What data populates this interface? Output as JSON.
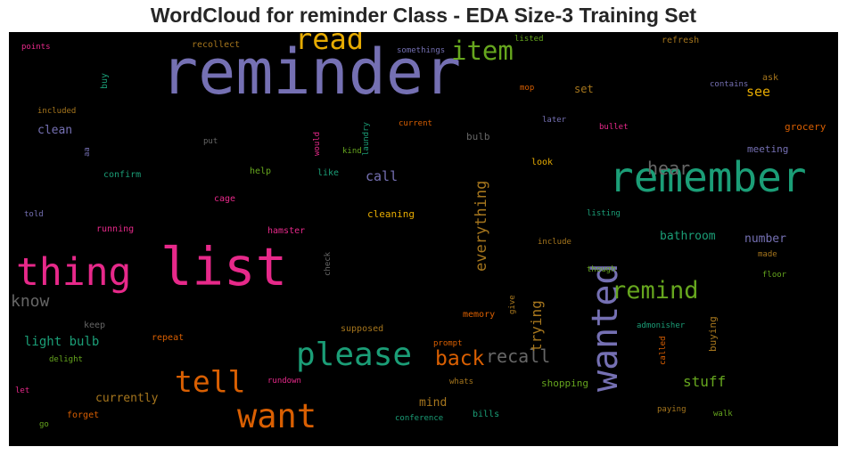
{
  "title": "WordCloud for reminder Class - EDA Size-3 Training Set",
  "chart_data": {
    "type": "wordcloud",
    "title": "WordCloud for reminder Class - EDA Size-3 Training Set",
    "background": "#000000",
    "palette": [
      "#7570b3",
      "#1b9e77",
      "#d95f02",
      "#e7298a",
      "#66a61e",
      "#e6ab02",
      "#a6761d",
      "#666666"
    ],
    "words": [
      {
        "text": "reminder",
        "weight": 1.0,
        "color": "#7570b3"
      },
      {
        "text": "list",
        "weight": 0.84,
        "color": "#e7298a"
      },
      {
        "text": "remember",
        "weight": 0.66,
        "color": "#1b9e77"
      },
      {
        "text": "thing",
        "weight": 0.62,
        "color": "#e7298a"
      },
      {
        "text": "wanted",
        "weight": 0.57,
        "color": "#7570b3"
      },
      {
        "text": "want",
        "weight": 0.53,
        "color": "#d95f02"
      },
      {
        "text": "please",
        "weight": 0.52,
        "color": "#1b9e77"
      },
      {
        "text": "tell",
        "weight": 0.47,
        "color": "#d95f02"
      },
      {
        "text": "read",
        "weight": 0.46,
        "color": "#e6ab02"
      },
      {
        "text": "item",
        "weight": 0.41,
        "color": "#66a61e"
      },
      {
        "text": "remind",
        "weight": 0.38,
        "color": "#66a61e"
      },
      {
        "text": "back",
        "weight": 0.33,
        "color": "#d95f02"
      },
      {
        "text": "recall",
        "weight": 0.29,
        "color": "#666666"
      },
      {
        "text": "hear",
        "weight": 0.29,
        "color": "#666666"
      },
      {
        "text": "everything",
        "weight": 0.24,
        "color": "#a6761d"
      },
      {
        "text": "trying",
        "weight": 0.23,
        "color": "#a6761d"
      },
      {
        "text": "know",
        "weight": 0.26,
        "color": "#666666"
      },
      {
        "text": "stuff",
        "weight": 0.23,
        "color": "#66a61e"
      },
      {
        "text": "call",
        "weight": 0.22,
        "color": "#7570b3"
      },
      {
        "text": "see",
        "weight": 0.22,
        "color": "#e6ab02"
      },
      {
        "text": "light bulb",
        "weight": 0.2,
        "color": "#1b9e77"
      },
      {
        "text": "bathroom",
        "weight": 0.19,
        "color": "#1b9e77"
      },
      {
        "text": "number",
        "weight": 0.19,
        "color": "#7570b3"
      },
      {
        "text": "currently",
        "weight": 0.19,
        "color": "#a6761d"
      },
      {
        "text": "clean",
        "weight": 0.18,
        "color": "#7570b3"
      },
      {
        "text": "mind",
        "weight": 0.18,
        "color": "#a6761d"
      },
      {
        "text": "set",
        "weight": 0.17,
        "color": "#a6761d"
      },
      {
        "text": "grocery",
        "weight": 0.15,
        "color": "#d95f02"
      },
      {
        "text": "meeting",
        "weight": 0.15,
        "color": "#7570b3"
      },
      {
        "text": "bulb",
        "weight": 0.15,
        "color": "#666666"
      },
      {
        "text": "shopping",
        "weight": 0.15,
        "color": "#66a61e"
      },
      {
        "text": "buying",
        "weight": 0.15,
        "color": "#a6761d"
      },
      {
        "text": "cleaning",
        "weight": 0.15,
        "color": "#e6ab02"
      },
      {
        "text": "refresh",
        "weight": 0.14,
        "color": "#a6761d"
      },
      {
        "text": "recollect",
        "weight": 0.14,
        "color": "#a6761d"
      },
      {
        "text": "buy",
        "weight": 0.14,
        "color": "#1b9e77"
      },
      {
        "text": "confirm",
        "weight": 0.14,
        "color": "#1b9e77"
      },
      {
        "text": "help",
        "weight": 0.14,
        "color": "#66a61e"
      },
      {
        "text": "like",
        "weight": 0.14,
        "color": "#1b9e77"
      },
      {
        "text": "cage",
        "weight": 0.14,
        "color": "#e7298a"
      },
      {
        "text": "running",
        "weight": 0.14,
        "color": "#e7298a"
      },
      {
        "text": "hamster",
        "weight": 0.14,
        "color": "#e7298a"
      },
      {
        "text": "look",
        "weight": 0.14,
        "color": "#e6ab02"
      },
      {
        "text": "ask",
        "weight": 0.14,
        "color": "#a6761d"
      },
      {
        "text": "memory",
        "weight": 0.14,
        "color": "#d95f02"
      },
      {
        "text": "repeat",
        "weight": 0.14,
        "color": "#d95f02"
      },
      {
        "text": "keep",
        "weight": 0.14,
        "color": "#666666"
      },
      {
        "text": "supposed",
        "weight": 0.14,
        "color": "#a6761d"
      },
      {
        "text": "forget",
        "weight": 0.14,
        "color": "#d95f02"
      },
      {
        "text": "bills",
        "weight": 0.14,
        "color": "#1b9e77"
      },
      {
        "text": "delight",
        "weight": 0.13,
        "color": "#66a61e"
      },
      {
        "text": "made",
        "weight": 0.13,
        "color": "#a6761d"
      },
      {
        "text": "go",
        "weight": 0.13,
        "color": "#66a61e"
      },
      {
        "text": "told",
        "weight": 0.13,
        "color": "#7570b3"
      },
      {
        "text": "give",
        "weight": 0.12,
        "color": "#a6761d"
      },
      {
        "text": "points",
        "weight": 0.1,
        "color": "#e7298a"
      },
      {
        "text": "somethings",
        "weight": 0.1,
        "color": "#7570b3"
      },
      {
        "text": "listed",
        "weight": 0.1,
        "color": "#66a61e"
      },
      {
        "text": "mop",
        "weight": 0.09,
        "color": "#d95f02"
      },
      {
        "text": "contains",
        "weight": 0.1,
        "color": "#7570b3"
      },
      {
        "text": "included",
        "weight": 0.1,
        "color": "#a6761d"
      },
      {
        "text": "later",
        "weight": 0.1,
        "color": "#7570b3"
      },
      {
        "text": "bullet",
        "weight": 0.1,
        "color": "#e7298a"
      },
      {
        "text": "current",
        "weight": 0.1,
        "color": "#d95f02"
      },
      {
        "text": "put",
        "weight": 0.1,
        "color": "#666666"
      },
      {
        "text": "aa",
        "weight": 0.09,
        "color": "#7570b3"
      },
      {
        "text": "would",
        "weight": 0.09,
        "color": "#e7298a"
      },
      {
        "text": "laundry",
        "weight": 0.09,
        "color": "#1b9e77"
      },
      {
        "text": "kind",
        "weight": 0.09,
        "color": "#66a61e"
      },
      {
        "text": "listing",
        "weight": 0.1,
        "color": "#1b9e77"
      },
      {
        "text": "include",
        "weight": 0.1,
        "color": "#a6761d"
      },
      {
        "text": "check",
        "weight": 0.09,
        "color": "#666666"
      },
      {
        "text": "though",
        "weight": 0.1,
        "color": "#66a61e"
      },
      {
        "text": "floor",
        "weight": 0.1,
        "color": "#66a61e"
      },
      {
        "text": "admonisher",
        "weight": 0.1,
        "color": "#1b9e77"
      },
      {
        "text": "called",
        "weight": 0.09,
        "color": "#d95f02"
      },
      {
        "text": "prompt",
        "weight": 0.1,
        "color": "#d95f02"
      },
      {
        "text": "let",
        "weight": 0.1,
        "color": "#e7298a"
      },
      {
        "text": "whats",
        "weight": 0.1,
        "color": "#a6761d"
      },
      {
        "text": "rundown",
        "weight": 0.1,
        "color": "#e7298a"
      },
      {
        "text": "conference",
        "weight": 0.1,
        "color": "#1b9e77"
      },
      {
        "text": "paying",
        "weight": 0.1,
        "color": "#a6761d"
      },
      {
        "text": "walk",
        "weight": 0.1,
        "color": "#66a61e"
      }
    ]
  }
}
